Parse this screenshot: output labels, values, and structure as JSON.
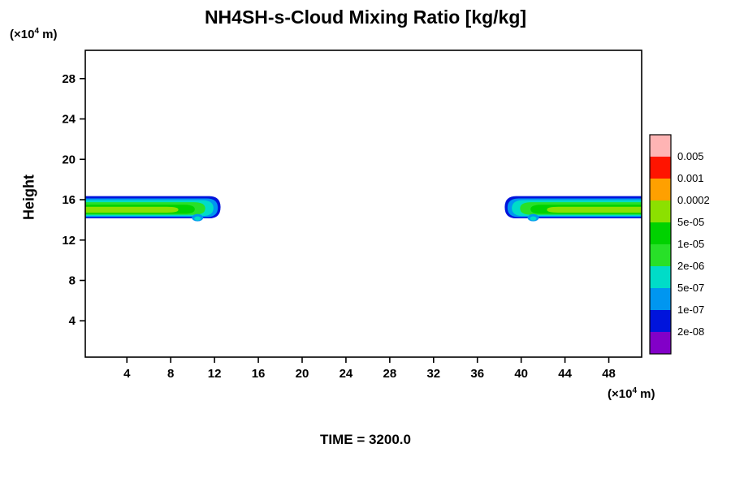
{
  "title": "NH4SH-s-Cloud Mixing Ratio [kg/kg]",
  "time_label": "TIME = 3200.0",
  "unit_label": {
    "prefix": "(×10",
    "exponent": "4",
    "suffix": " m)"
  },
  "chart_data": {
    "type": "filled_contour",
    "title": "NH4SH-s-Cloud Mixing Ratio [kg/kg]",
    "ylabel": "Height",
    "y_axis_unit": "(x10^4 m)",
    "x_axis_unit": "(x10^4 m)",
    "time": "3200.0",
    "xlim": [
      0.2,
      51.0
    ],
    "ylim": [
      0.4,
      30.8
    ],
    "x_ticks": [
      4,
      8,
      12,
      16,
      20,
      24,
      28,
      32,
      36,
      40,
      44,
      48
    ],
    "y_ticks": [
      4,
      8,
      12,
      16,
      20,
      24,
      28
    ],
    "grid": false,
    "colorbar": {
      "position": "right",
      "boundary_labels_top_to_bottom": [
        "0.005",
        "0.001",
        "0.0002",
        "5e-05",
        "1e-05",
        "2e-06",
        "5e-07",
        "1e-07",
        "2e-08"
      ],
      "segment_colors_top_to_bottom": [
        "#ffb4b4",
        "#ff1400",
        "#ffa000",
        "#8ce000",
        "#00d200",
        "#28e028",
        "#00dcc8",
        "#0096f0",
        "#0014dc",
        "#8200c8"
      ]
    },
    "bands": [
      {
        "name": "left-cloud",
        "tip": "right",
        "layers": [
          {
            "color": "#0014dc",
            "x0": 0.2,
            "x1": 12.55,
            "y0": 14.15,
            "y1": 16.35
          },
          {
            "color": "#0096f0",
            "x0": 0.2,
            "x1": 12.3,
            "y0": 14.28,
            "y1": 16.12
          },
          {
            "color": "#00dcc8",
            "x0": 0.2,
            "x1": 11.9,
            "y0": 14.38,
            "y1": 15.95
          },
          {
            "color": "#28e028",
            "x0": 0.2,
            "x1": 11.15,
            "y0": 14.5,
            "y1": 15.75
          },
          {
            "color": "#00d200",
            "x0": 0.2,
            "x1": 10.2,
            "y0": 14.6,
            "y1": 15.5
          },
          {
            "color": "#8ce000",
            "x0": 0.2,
            "x1": 8.7,
            "y0": 14.72,
            "y1": 15.3
          }
        ],
        "bump": {
          "x": 10.45,
          "y": 14.22,
          "outer": "#0096f0",
          "inner": "#00dcc8"
        }
      },
      {
        "name": "right-cloud",
        "tip": "left",
        "layers": [
          {
            "color": "#0014dc",
            "x0": 38.5,
            "x1": 51.0,
            "y0": 14.15,
            "y1": 16.35
          },
          {
            "color": "#0096f0",
            "x0": 38.75,
            "x1": 51.0,
            "y0": 14.28,
            "y1": 16.12
          },
          {
            "color": "#00dcc8",
            "x0": 39.15,
            "x1": 51.0,
            "y0": 14.38,
            "y1": 15.95
          },
          {
            "color": "#28e028",
            "x0": 39.9,
            "x1": 51.0,
            "y0": 14.5,
            "y1": 15.75
          },
          {
            "color": "#00d200",
            "x0": 40.85,
            "x1": 51.0,
            "y0": 14.6,
            "y1": 15.5
          },
          {
            "color": "#8ce000",
            "x0": 42.35,
            "x1": 51.0,
            "y0": 14.72,
            "y1": 15.3
          }
        ],
        "bump": {
          "x": 41.1,
          "y": 14.22,
          "outer": "#0096f0",
          "inner": "#00dcc8"
        }
      }
    ]
  }
}
